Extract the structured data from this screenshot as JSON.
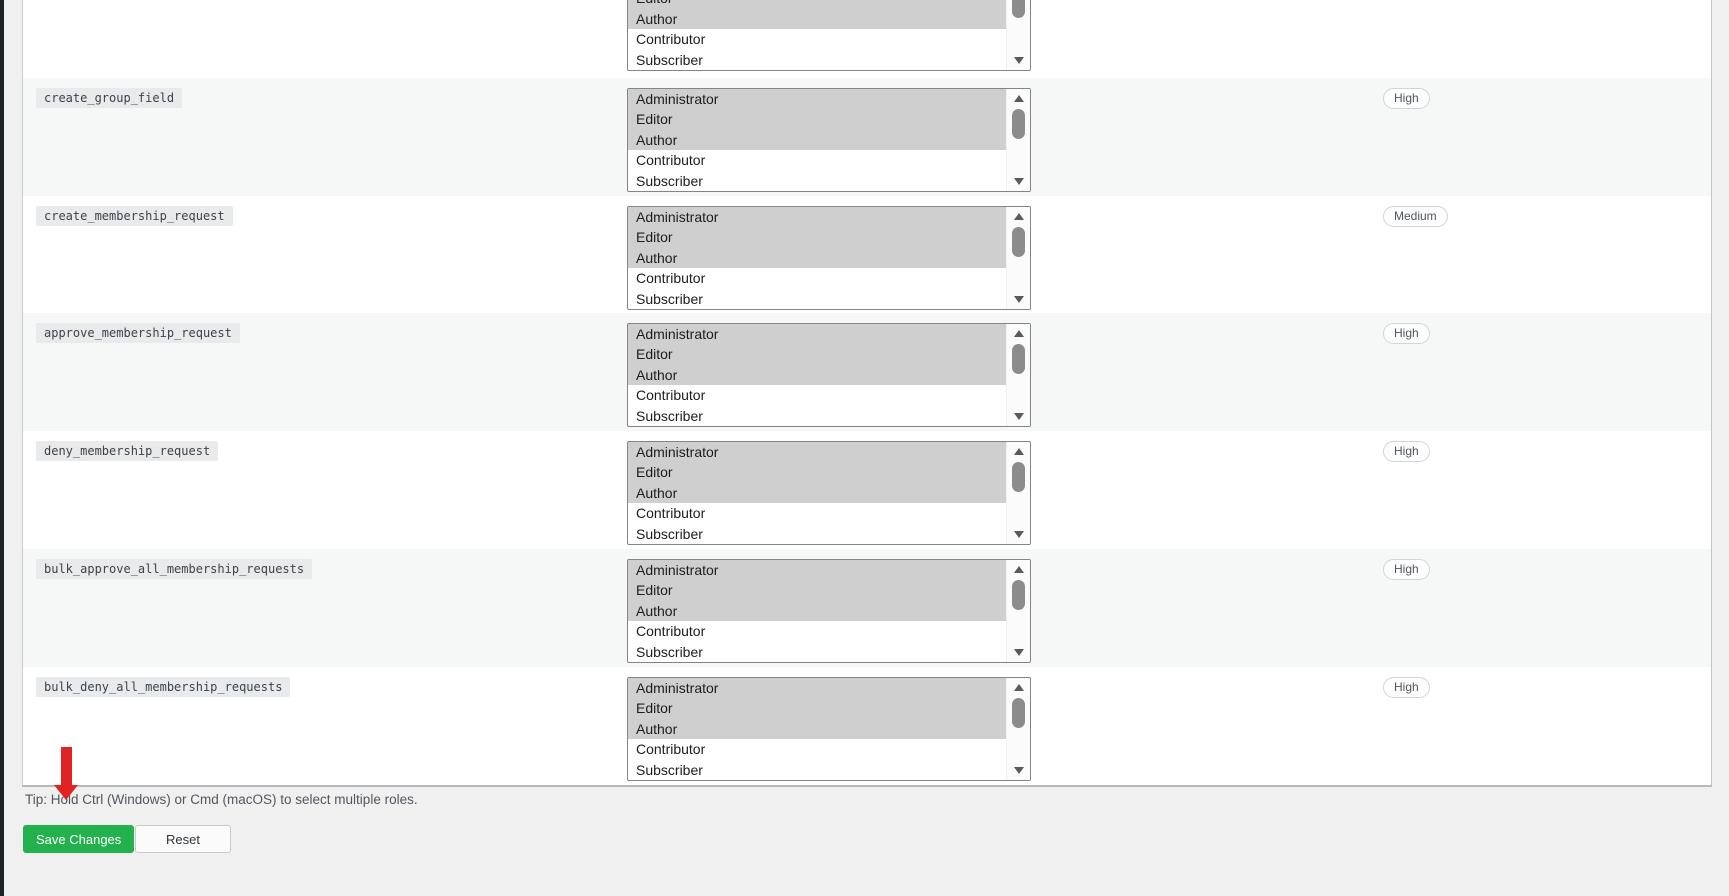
{
  "page": {
    "tip": "Tip: Hold Ctrl (Windows) or Cmd (macOS) to select multiple roles.",
    "save_button_label": "Save Changes",
    "reset_button_label": "Reset"
  },
  "colors": {
    "accent_green": "#22b14c",
    "arrow_red": "#e02424",
    "row_stripe": "#f6f7f7",
    "selection_gray": "#cfcfcf",
    "page_background": "#f0f0f1",
    "badge_text": "#50575e"
  },
  "roles": [
    "Administrator",
    "Editor",
    "Author",
    "Contributor",
    "Subscriber"
  ],
  "selected_roles": [
    "Administrator",
    "Editor",
    "Author"
  ],
  "partial_top_row": {
    "note_visible_roles": [
      "Editor",
      "Author",
      "Contributor",
      "Subscriber"
    ],
    "selected_roles": [
      "Editor",
      "Author"
    ]
  },
  "capability_rows": [
    {
      "capability": "create_group_field",
      "priority": "High"
    },
    {
      "capability": "create_membership_request",
      "priority": "Medium"
    },
    {
      "capability": "approve_membership_request",
      "priority": "High"
    },
    {
      "capability": "deny_membership_request",
      "priority": "High"
    },
    {
      "capability": "bulk_approve_all_membership_requests",
      "priority": "High"
    },
    {
      "capability": "bulk_deny_all_membership_requests",
      "priority": "High"
    }
  ],
  "icons": {
    "scroll_up": "triangle-up-icon",
    "scroll_down": "triangle-down-icon",
    "annotation": "red-down-arrow"
  }
}
